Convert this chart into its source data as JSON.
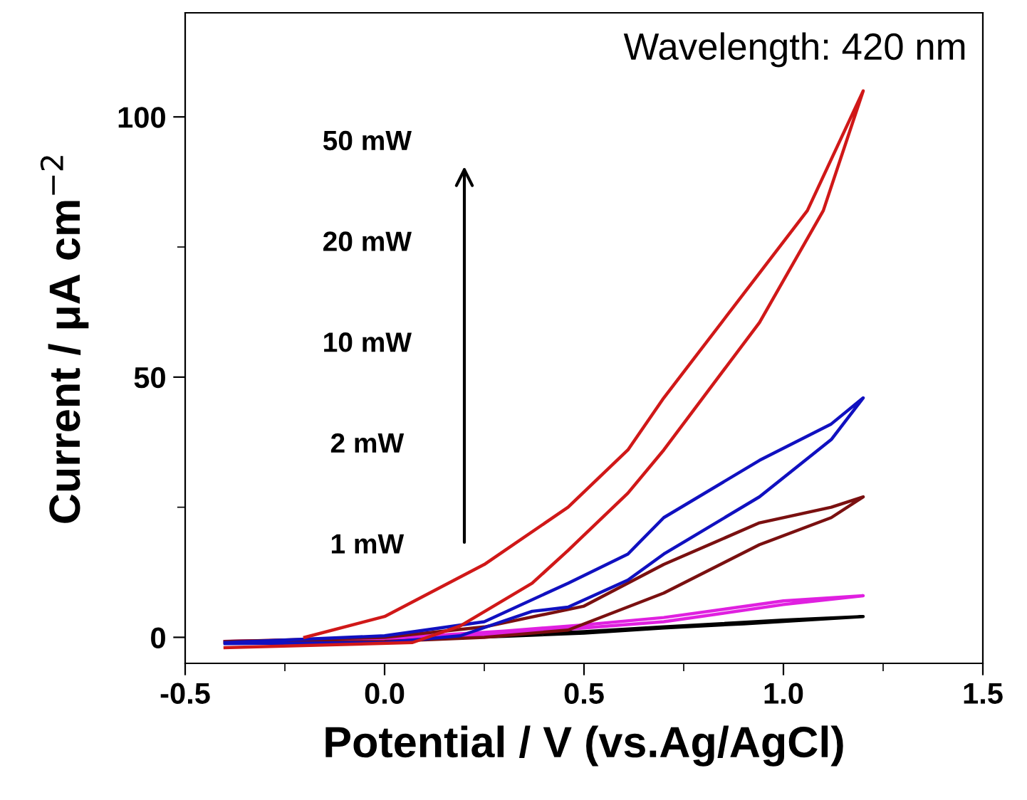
{
  "chart_data": {
    "type": "line",
    "xlabel": "Potential / V (vs.Ag/AgCl)",
    "ylabel": "Current / μA cm$^{−2}$",
    "annotations": [
      "Wavelength: 420 nm",
      "50 mW",
      "20 mW",
      "10 mW",
      "2 mW",
      "1 mW"
    ],
    "xlim": [
      -0.5,
      1.5
    ],
    "xticks": [
      -0.5,
      {
        "value": 0,
        "label": "0.0"
      },
      0.5,
      {
        "value": 1,
        "label": "1.0"
      },
      1.5
    ],
    "ylim": [
      -5,
      120
    ],
    "yticks": [
      0,
      50,
      100
    ],
    "grid": false,
    "marker": "none",
    "line_style": "solid",
    "series": [
      {
        "color": "#000000",
        "x": [
          -0.4,
          0.0,
          0.3,
          0.5,
          0.7,
          0.9,
          1.2,
          1.0,
          0.7,
          0.5,
          0.3,
          0.0,
          -0.4
        ],
        "values": [
          -1,
          -0.5,
          0.2,
          0.8,
          1.8,
          2.6,
          4.0,
          3.3,
          2.0,
          1.1,
          0.4,
          -0.3,
          -0.8
        ]
      },
      {
        "color": "#e020e0",
        "x": [
          -0.4,
          0.0,
          0.3,
          0.5,
          0.7,
          1.0,
          1.2,
          1.0,
          0.7,
          0.5,
          0.3,
          0.0,
          -0.4
        ],
        "values": [
          -1,
          -0.6,
          0.6,
          1.8,
          3.0,
          6.3,
          8.0,
          7.0,
          3.8,
          2.4,
          1.2,
          -0.2,
          -0.8
        ]
      },
      {
        "color": "#7a1010",
        "x": [
          -0.4,
          0.0,
          0.25,
          0.46,
          0.7,
          0.94,
          1.12,
          1.2,
          1.12,
          0.94,
          0.7,
          0.5,
          0.25,
          0.0,
          -0.4
        ],
        "values": [
          -1,
          -0.8,
          0.0,
          1.4,
          8.5,
          17.8,
          23,
          27,
          25,
          22,
          14,
          6,
          2,
          0.0,
          -0.8
        ]
      },
      {
        "color": "#1010c0",
        "x": [
          -0.4,
          0.0,
          0.19,
          0.37,
          0.46,
          0.61,
          0.7,
          0.94,
          1.12,
          1.2,
          1.12,
          0.94,
          0.7,
          0.61,
          0.46,
          0.25,
          0.0,
          -0.4
        ],
        "values": [
          -1.2,
          -1.0,
          0.3,
          5,
          5.8,
          11,
          16,
          27,
          38,
          46,
          41,
          34,
          23,
          16,
          10.4,
          3,
          0.3,
          -1
        ]
      },
      {
        "color": "#d01818",
        "x": [
          -0.4,
          0.07,
          0.19,
          0.37,
          0.46,
          0.61,
          0.7,
          0.94,
          1.1,
          1.2,
          1.06,
          0.94,
          0.7,
          0.61,
          0.46,
          0.25,
          0.0,
          -0.2
        ],
        "values": [
          -2,
          -1,
          2.2,
          10.4,
          16.7,
          27.7,
          36,
          60.5,
          82,
          105,
          82,
          70,
          46,
          36,
          25,
          14,
          4,
          0
        ]
      }
    ]
  }
}
